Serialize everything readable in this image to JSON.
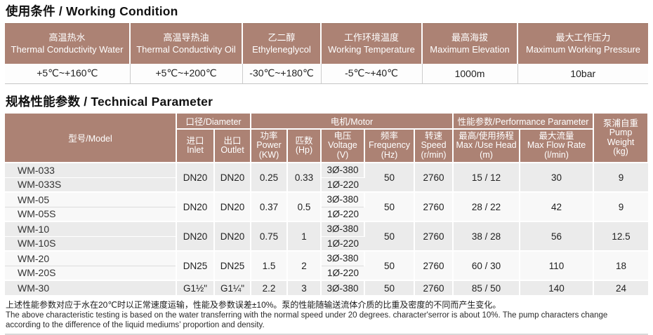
{
  "sections": {
    "working_condition_title": "使用条件 / Working Condition",
    "technical_parameter_title": "规格性能参数 / Technical Parameter"
  },
  "colors": {
    "header_brown": "#ac8274",
    "model_header_gray": "#a9a9a9",
    "row_shade": "#ebebeb",
    "row_plain": "#f8f8f8"
  },
  "working_condition": {
    "columns": [
      {
        "zh": "高温热水",
        "en": "Thermal Conductivity Water",
        "value": "+5℃~+160℃"
      },
      {
        "zh": "高温导热油",
        "en": "Thermal Conductivity Oil",
        "value": "+5℃~+200℃"
      },
      {
        "zh": "乙二醇",
        "en": "Ethyleneglycol",
        "value": "-30℃~+180℃"
      },
      {
        "zh": "工作环境温度",
        "en": "Working Temperature",
        "value": "-5℃~+40℃"
      },
      {
        "zh": "最高海拔",
        "en": "Maximum Elevation",
        "value": "1000m"
      },
      {
        "zh": "最大工作压力",
        "en": "Maximum Working Pressure",
        "value": "10bar"
      }
    ]
  },
  "technical_parameter": {
    "header": {
      "model": "型号/Model",
      "diameter_group": "口径/Diameter",
      "motor_group": "电机/Motor",
      "performance_group": "性能参数/Performance Parameter",
      "weight": [
        "泵浦自重",
        "Pump Weight",
        "(kg)"
      ],
      "sub": [
        [
          "进口",
          "Inlet"
        ],
        [
          "出口",
          "Outlet"
        ],
        [
          "功率",
          "Power",
          "(KW)"
        ],
        [
          "匹数",
          "(Hp)"
        ],
        [
          "电压",
          "Voltage",
          "(V)"
        ],
        [
          "频率",
          "Frequency",
          "(Hz)"
        ],
        [
          "转速",
          "Speed",
          "(r/min)"
        ],
        [
          "最高/使用扬程",
          "Max /Use Head",
          "(m)"
        ],
        [
          "最大流量",
          "Max Flow Rate",
          "(l/min)"
        ]
      ]
    },
    "groups": [
      {
        "models": [
          "WM-033",
          "WM-033S"
        ],
        "inlet": "DN20",
        "outlet": "DN20",
        "power": "0.25",
        "hp": "0.33",
        "voltages": [
          "3Ø-380",
          "1Ø-220"
        ],
        "frequency": "50",
        "speed": "2760",
        "head": "15 / 12",
        "flow": "30",
        "weight": "9"
      },
      {
        "models": [
          "WM-05",
          "WM-05S"
        ],
        "inlet": "DN20",
        "outlet": "DN20",
        "power": "0.37",
        "hp": "0.5",
        "voltages": [
          "3Ø-380",
          "1Ø-220"
        ],
        "frequency": "50",
        "speed": "2760",
        "head": "28 / 22",
        "flow": "42",
        "weight": "9"
      },
      {
        "models": [
          "WM-10",
          "WM-10S"
        ],
        "inlet": "DN20",
        "outlet": "DN20",
        "power": "0.75",
        "hp": "1",
        "voltages": [
          "3Ø-380",
          "1Ø-220"
        ],
        "frequency": "50",
        "speed": "2760",
        "head": "38 / 28",
        "flow": "56",
        "weight": "12.5"
      },
      {
        "models": [
          "WM-20",
          "WM-20S"
        ],
        "inlet": "DN25",
        "outlet": "DN25",
        "power": "1.5",
        "hp": "2",
        "voltages": [
          "3Ø-380",
          "1Ø-220"
        ],
        "frequency": "50",
        "speed": "2760",
        "head": "60 / 30",
        "flow": "110",
        "weight": "18"
      },
      {
        "models": [
          "WM-30"
        ],
        "inlet": "G1½\"",
        "outlet": "G1¼\"",
        "power": "2.2",
        "hp": "3",
        "voltages": [
          "3Ø-380"
        ],
        "frequency": "50",
        "speed": "2760",
        "head": "85 / 50",
        "flow": "140",
        "weight": "24"
      }
    ]
  },
  "footnote": {
    "zh": "上述性能参数对应于水在20℃时以正常速度运输，性能及参数误差±10%。泵的性能随输送流体介质的比重及密度的不同而产生变化。",
    "en": "The above characteristic testing is based on the water transferring with the normal speed under 20 degrees. character'serror is about 10%. The pump characters change according to the difference of the liquid mediums’ proportion and density."
  }
}
